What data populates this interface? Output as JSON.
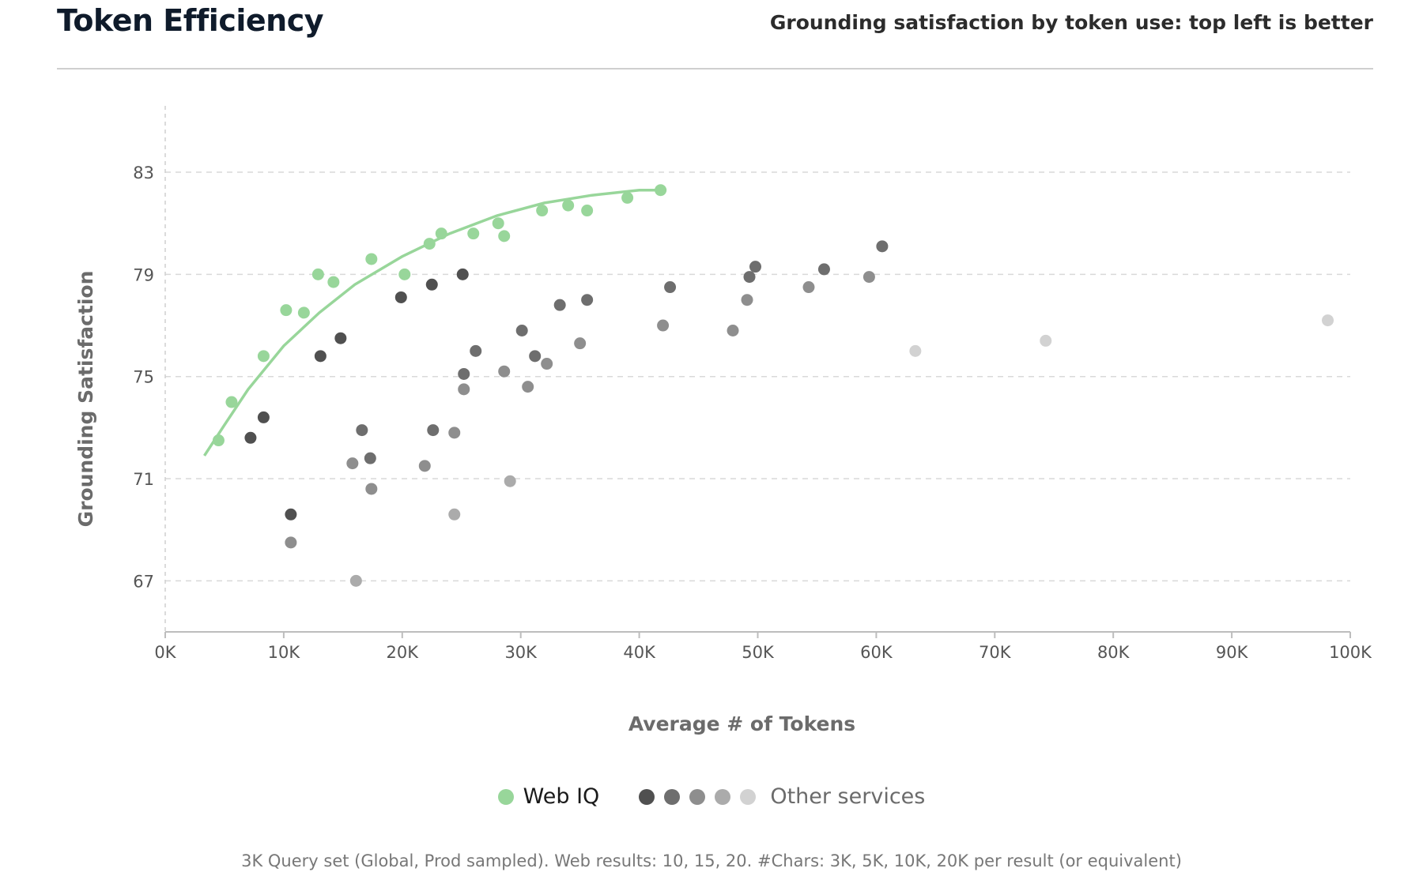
{
  "header": {
    "title": "Token Efficiency",
    "subtitle": "Grounding satisfaction by token use: top left is better"
  },
  "colors": {
    "primary": "#98d69a",
    "other_shades": [
      "#505050",
      "#6e6e6e",
      "#8e8e8e",
      "#ababab",
      "#d2d2d2"
    ]
  },
  "chart_data": {
    "type": "scatter",
    "xlabel": "Average # of Tokens",
    "ylabel": "Grounding Satisfaction",
    "xlim": [
      0,
      100000
    ],
    "ylim": [
      65,
      85.6
    ],
    "x_ticks": [
      {
        "value": 0,
        "label": "0K"
      },
      {
        "value": 10000,
        "label": "10K"
      },
      {
        "value": 20000,
        "label": "20K"
      },
      {
        "value": 30000,
        "label": "30K"
      },
      {
        "value": 40000,
        "label": "40K"
      },
      {
        "value": 50000,
        "label": "50K"
      },
      {
        "value": 60000,
        "label": "60K"
      },
      {
        "value": 70000,
        "label": "70K"
      },
      {
        "value": 80000,
        "label": "80K"
      },
      {
        "value": 90000,
        "label": "90K"
      },
      {
        "value": 100000,
        "label": "100K"
      }
    ],
    "y_ticks": [
      {
        "value": 67,
        "label": "67"
      },
      {
        "value": 71,
        "label": "71"
      },
      {
        "value": 75,
        "label": "75"
      },
      {
        "value": 79,
        "label": "79"
      },
      {
        "value": 83,
        "label": "83"
      }
    ],
    "grid": "horizontal dashed",
    "legend_position": "bottom-center",
    "series": [
      {
        "name": "Web IQ",
        "color": "#98d69a",
        "trendline": [
          [
            3300,
            71.9
          ],
          [
            5000,
            73.1
          ],
          [
            7000,
            74.5
          ],
          [
            10000,
            76.2
          ],
          [
            13000,
            77.5
          ],
          [
            16000,
            78.6
          ],
          [
            20000,
            79.7
          ],
          [
            24000,
            80.6
          ],
          [
            28000,
            81.3
          ],
          [
            32000,
            81.8
          ],
          [
            36000,
            82.1
          ],
          [
            40000,
            82.3
          ],
          [
            42300,
            82.3
          ]
        ],
        "points": [
          [
            4500,
            72.5
          ],
          [
            5600,
            74.0
          ],
          [
            8300,
            75.8
          ],
          [
            10200,
            77.6
          ],
          [
            11700,
            77.5
          ],
          [
            12900,
            79.0
          ],
          [
            14200,
            78.7
          ],
          [
            17400,
            79.6
          ],
          [
            20200,
            79.0
          ],
          [
            22300,
            80.2
          ],
          [
            23300,
            80.6
          ],
          [
            26000,
            80.6
          ],
          [
            28100,
            81.0
          ],
          [
            28600,
            80.5
          ],
          [
            31800,
            81.5
          ],
          [
            34000,
            81.7
          ],
          [
            35600,
            81.5
          ],
          [
            39000,
            82.0
          ],
          [
            41800,
            82.3
          ]
        ]
      },
      {
        "name": "Other services",
        "points": [
          {
            "x": 7200,
            "y": 72.6,
            "shade": 0
          },
          {
            "x": 8300,
            "y": 73.4,
            "shade": 0
          },
          {
            "x": 10600,
            "y": 69.6,
            "shade": 0
          },
          {
            "x": 13100,
            "y": 75.8,
            "shade": 0
          },
          {
            "x": 14800,
            "y": 76.5,
            "shade": 0
          },
          {
            "x": 16600,
            "y": 72.9,
            "shade": 1
          },
          {
            "x": 17300,
            "y": 71.8,
            "shade": 1
          },
          {
            "x": 19900,
            "y": 78.1,
            "shade": 0
          },
          {
            "x": 22500,
            "y": 78.6,
            "shade": 0
          },
          {
            "x": 25100,
            "y": 79.0,
            "shade": 0
          },
          {
            "x": 22600,
            "y": 72.9,
            "shade": 1
          },
          {
            "x": 25200,
            "y": 75.1,
            "shade": 1
          },
          {
            "x": 26200,
            "y": 76.0,
            "shade": 1
          },
          {
            "x": 30100,
            "y": 76.8,
            "shade": 1
          },
          {
            "x": 31200,
            "y": 75.8,
            "shade": 1
          },
          {
            "x": 33300,
            "y": 77.8,
            "shade": 1
          },
          {
            "x": 35600,
            "y": 78.0,
            "shade": 1
          },
          {
            "x": 42600,
            "y": 78.5,
            "shade": 1
          },
          {
            "x": 49300,
            "y": 78.9,
            "shade": 1
          },
          {
            "x": 49800,
            "y": 79.3,
            "shade": 1
          },
          {
            "x": 55600,
            "y": 79.2,
            "shade": 1
          },
          {
            "x": 60500,
            "y": 80.1,
            "shade": 1
          },
          {
            "x": 10600,
            "y": 68.5,
            "shade": 2
          },
          {
            "x": 15800,
            "y": 71.6,
            "shade": 2
          },
          {
            "x": 17400,
            "y": 70.6,
            "shade": 2
          },
          {
            "x": 21900,
            "y": 71.5,
            "shade": 2
          },
          {
            "x": 24400,
            "y": 72.8,
            "shade": 2
          },
          {
            "x": 25200,
            "y": 74.5,
            "shade": 2
          },
          {
            "x": 28600,
            "y": 75.2,
            "shade": 2
          },
          {
            "x": 30600,
            "y": 74.6,
            "shade": 2
          },
          {
            "x": 32200,
            "y": 75.5,
            "shade": 2
          },
          {
            "x": 35000,
            "y": 76.3,
            "shade": 2
          },
          {
            "x": 42000,
            "y": 77.0,
            "shade": 2
          },
          {
            "x": 47900,
            "y": 76.8,
            "shade": 2
          },
          {
            "x": 49100,
            "y": 78.0,
            "shade": 2
          },
          {
            "x": 54300,
            "y": 78.5,
            "shade": 2
          },
          {
            "x": 59400,
            "y": 78.9,
            "shade": 2
          },
          {
            "x": 16100,
            "y": 67.0,
            "shade": 3
          },
          {
            "x": 24400,
            "y": 69.6,
            "shade": 3
          },
          {
            "x": 29100,
            "y": 70.9,
            "shade": 3
          },
          {
            "x": 63300,
            "y": 76.0,
            "shade": 4
          },
          {
            "x": 74300,
            "y": 76.4,
            "shade": 4
          },
          {
            "x": 98100,
            "y": 77.2,
            "shade": 4
          }
        ]
      }
    ]
  },
  "legend": {
    "primary_label": "Web IQ",
    "other_label": "Other services"
  },
  "footnote": "3K Query set (Global, Prod sampled). Web results: 10, 15, 20. #Chars: 3K, 5K, 10K, 20K per result (or equivalent)"
}
